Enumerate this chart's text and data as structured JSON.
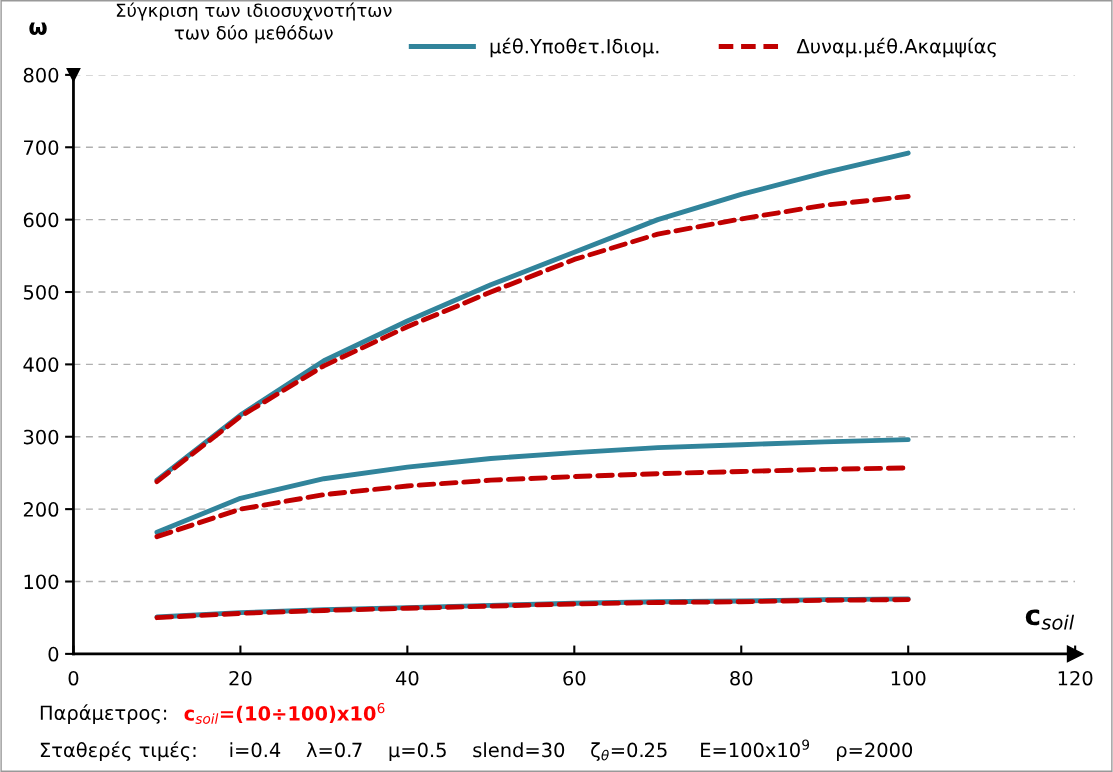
{
  "chart_data": {
    "type": "line",
    "title": "Σύγκριση των ιδιοσυχνοτήτων\nτων δύο μεθόδων",
    "ylabel": "ω",
    "xlabel": "c$_{soil}$",
    "x": [
      10,
      20,
      30,
      40,
      50,
      60,
      70,
      80,
      90,
      100
    ],
    "series": [
      {
        "name": "μέθ.Υποθετ.Ιδιομ.",
        "color": "#31849b",
        "line_style": "solid",
        "values": [
          240,
          330,
          405,
          460,
          510,
          555,
          600,
          635,
          665,
          692
        ]
      },
      {
        "name": "Δυναμ.μέθ.Ακαμψίας",
        "color": "#c00000",
        "line_style": "dashed",
        "values": [
          238,
          328,
          398,
          452,
          500,
          545,
          580,
          601,
          620,
          632
        ]
      },
      {
        "color": "#31849b",
        "line_style": "solid",
        "values": [
          168,
          215,
          242,
          258,
          270,
          278,
          285,
          289,
          293,
          296
        ]
      },
      {
        "color": "#c00000",
        "line_style": "dashed",
        "values": [
          162,
          200,
          220,
          232,
          240,
          245,
          249,
          252,
          255,
          257
        ]
      },
      {
        "color": "#31849b",
        "line_style": "solid",
        "values": [
          51,
          57,
          61,
          64,
          67,
          70,
          72,
          73,
          75,
          76
        ]
      },
      {
        "color": "#c00000",
        "line_style": "dashed",
        "values": [
          50,
          56,
          60,
          63,
          66,
          69,
          71,
          72,
          74,
          75
        ]
      }
    ],
    "xlim": [
      0,
      120
    ],
    "xticks": [
      0,
      20,
      40,
      60,
      80,
      100,
      120
    ],
    "ylim": [
      0,
      800
    ],
    "yticks": [
      0,
      100,
      200,
      300,
      400,
      500,
      600,
      700,
      800
    ],
    "grid": "y",
    "legend": "top",
    "marker": "none",
    "annotations": [
      "Παράμετρος:",
      "c$_{soil}$=(10÷100)x10$^{6}$",
      "Σταθερές τιμές:     i=0.4    λ=0.7    μ=0.5    slend=30    ζ$_{θ}$=0.25     E=100x10$^{9}$    ρ=2000"
    ]
  }
}
